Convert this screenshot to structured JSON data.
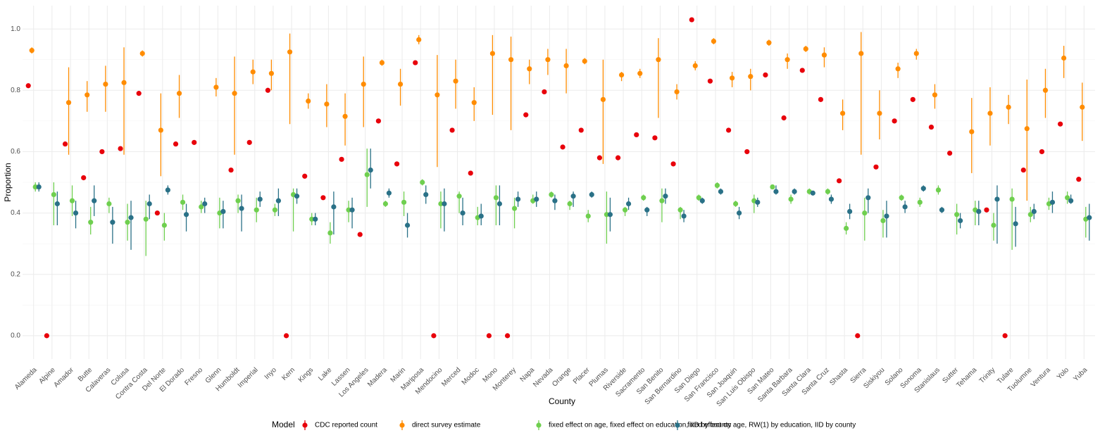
{
  "chart_data": {
    "type": "dot_errorbar",
    "x_label": "County",
    "y_label": "Proportion",
    "legend_title": "Model",
    "legend_position": "bottom",
    "grid": true,
    "categories": [
      "Alameda",
      "Alpine",
      "Amador",
      "Butte",
      "Calaveras",
      "Colusa",
      "Contra Costa",
      "Del Norte",
      "El Dorado",
      "Fresno",
      "Glenn",
      "Humboldt",
      "Imperial",
      "Inyo",
      "Kern",
      "Kings",
      "Lake",
      "Lassen",
      "Los Angeles",
      "Madera",
      "Marin",
      "Mariposa",
      "Mendocino",
      "Merced",
      "Modoc",
      "Mono",
      "Monterey",
      "Napa",
      "Nevada",
      "Orange",
      "Placer",
      "Plumas",
      "Riverside",
      "Sacramento",
      "San Benito",
      "San Bernardino",
      "San Diego",
      "San Francisco",
      "San Joaquin",
      "San Luis Obispo",
      "San Mateo",
      "Santa Barbara",
      "Santa Clara",
      "Santa Cruz",
      "Shasta",
      "Sierra",
      "Siskiyou",
      "Solano",
      "Sonoma",
      "Stanislaus",
      "Sutter",
      "Tehama",
      "Trinity",
      "Tulare",
      "Tuolumne",
      "Ventura",
      "Yolo",
      "Yuba"
    ],
    "ylim": [
      -0.076,
      1.076
    ],
    "yticks": [
      {
        "value": 0,
        "label": "0.0"
      },
      0.2,
      0.4,
      0.6,
      0.8,
      {
        "value": 1,
        "label": "1.0"
      }
    ],
    "series": [
      {
        "name": "CDC reported count",
        "color": "#e8000b",
        "values": [
          0.815,
          0,
          0.625,
          0.515,
          0.6,
          0.61,
          0.79,
          0.4,
          0.625,
          0.63,
          null,
          0.54,
          0.63,
          0.8,
          0,
          0.52,
          0.45,
          0.575,
          0.33,
          0.7,
          0.56,
          0.89,
          0,
          0.67,
          0.53,
          0,
          0,
          0.72,
          0.795,
          0.615,
          0.67,
          0.58,
          0.58,
          0.655,
          0.645,
          0.56,
          1.03,
          0.83,
          0.67,
          0.6,
          0.85,
          0.71,
          0.865,
          0.77,
          0.505,
          0,
          0.55,
          0.7,
          0.77,
          0.68,
          0.595,
          null,
          0.41,
          0,
          0.54,
          0.6,
          0.69,
          0.51
        ]
      },
      {
        "name": "direct survey estimate",
        "color": "#ff8c00",
        "values": [
          0.93,
          null,
          0.76,
          0.785,
          0.82,
          0.825,
          0.92,
          0.67,
          0.79,
          null,
          0.81,
          0.79,
          0.86,
          0.855,
          0.925,
          0.765,
          0.755,
          0.715,
          0.82,
          0.89,
          0.82,
          0.965,
          0.785,
          0.83,
          0.76,
          0.92,
          0.9,
          0.87,
          0.9,
          0.88,
          0.895,
          0.77,
          0.85,
          0.855,
          0.9,
          0.795,
          0.88,
          0.96,
          0.84,
          0.845,
          0.955,
          0.9,
          0.935,
          0.915,
          0.725,
          0.92,
          0.725,
          0.87,
          0.92,
          0.785,
          null,
          0.665,
          0.725,
          0.745,
          0.675,
          0.8,
          0.905,
          0.745
        ],
        "lower": [
          0.92,
          null,
          0.59,
          0.73,
          0.73,
          0.59,
          0.91,
          0.52,
          0.71,
          null,
          0.78,
          0.59,
          0.82,
          0.8,
          0.69,
          0.74,
          0.68,
          0.62,
          0.68,
          0.88,
          0.75,
          0.95,
          0.55,
          0.74,
          0.7,
          0.72,
          0.67,
          0.82,
          0.85,
          0.79,
          0.885,
          0.56,
          0.83,
          0.84,
          0.71,
          0.77,
          0.865,
          0.95,
          0.81,
          0.8,
          0.945,
          0.87,
          0.925,
          0.875,
          0.67,
          0.59,
          0.64,
          0.84,
          0.9,
          0.74,
          null,
          0.53,
          0.62,
          0.69,
          0.44,
          0.71,
          0.84,
          0.635
        ],
        "upper": [
          0.94,
          null,
          0.875,
          0.83,
          0.88,
          0.94,
          0.93,
          0.79,
          0.85,
          null,
          0.84,
          0.91,
          0.9,
          0.9,
          0.985,
          0.79,
          0.82,
          0.79,
          0.91,
          0.9,
          0.87,
          0.98,
          0.915,
          0.9,
          0.81,
          0.98,
          0.975,
          0.9,
          0.935,
          0.935,
          0.905,
          0.9,
          0.86,
          0.87,
          0.97,
          0.82,
          0.895,
          0.97,
          0.86,
          0.87,
          0.965,
          0.92,
          0.945,
          0.94,
          0.77,
          0.99,
          0.8,
          0.89,
          0.935,
          0.82,
          null,
          0.775,
          0.81,
          0.785,
          0.835,
          0.87,
          0.945,
          0.825
        ]
      },
      {
        "name": "fixed effect on age, fixed effect on education, IID by county",
        "color": "#6fcf4f",
        "values": [
          0.485,
          0.46,
          0.44,
          0.37,
          0.43,
          0.37,
          0.38,
          0.36,
          0.435,
          0.42,
          0.4,
          0.44,
          0.41,
          0.41,
          0.46,
          0.38,
          0.335,
          0.41,
          0.525,
          0.43,
          0.435,
          0.5,
          0.43,
          0.455,
          0.385,
          0.45,
          0.415,
          0.44,
          0.46,
          0.43,
          0.39,
          0.395,
          0.41,
          0.45,
          0.44,
          0.41,
          0.45,
          0.49,
          0.43,
          0.44,
          0.485,
          0.445,
          0.47,
          0.47,
          0.35,
          0.4,
          0.375,
          0.45,
          0.435,
          0.475,
          0.395,
          0.41,
          0.36,
          0.445,
          0.395,
          0.43,
          0.45,
          0.38
        ],
        "lower": [
          0.47,
          0.36,
          0.39,
          0.33,
          0.4,
          0.31,
          0.26,
          0.31,
          0.41,
          0.4,
          0.35,
          0.4,
          0.37,
          0.39,
          0.34,
          0.36,
          0.3,
          0.37,
          0.42,
          0.42,
          0.39,
          0.49,
          0.35,
          0.4,
          0.36,
          0.36,
          0.35,
          0.43,
          0.45,
          0.41,
          0.37,
          0.3,
          0.39,
          0.44,
          0.37,
          0.38,
          0.44,
          0.48,
          0.42,
          0.4,
          0.48,
          0.43,
          0.46,
          0.46,
          0.33,
          0.31,
          0.32,
          0.44,
          0.42,
          0.46,
          0.33,
          0.36,
          0.31,
          0.28,
          0.37,
          0.41,
          0.43,
          0.32
        ],
        "upper": [
          0.5,
          0.5,
          0.49,
          0.42,
          0.45,
          0.43,
          0.44,
          0.4,
          0.46,
          0.44,
          0.45,
          0.46,
          0.45,
          0.43,
          0.48,
          0.4,
          0.37,
          0.44,
          0.61,
          0.44,
          0.47,
          0.51,
          0.47,
          0.47,
          0.42,
          0.49,
          0.45,
          0.46,
          0.47,
          0.44,
          0.41,
          0.47,
          0.42,
          0.46,
          0.48,
          0.42,
          0.46,
          0.5,
          0.44,
          0.46,
          0.49,
          0.46,
          0.48,
          0.48,
          0.37,
          0.45,
          0.41,
          0.46,
          0.45,
          0.49,
          0.43,
          0.44,
          0.4,
          0.48,
          0.42,
          0.45,
          0.47,
          0.42
        ]
      },
      {
        "name": "fixed effect on age, RW(1) by education, IID by county",
        "color": "#2a7187",
        "values": [
          0.485,
          0.43,
          0.4,
          0.44,
          0.37,
          0.385,
          0.43,
          0.475,
          0.395,
          0.43,
          0.405,
          0.415,
          0.445,
          0.44,
          0.455,
          0.38,
          0.42,
          0.41,
          0.54,
          0.465,
          0.36,
          0.46,
          0.43,
          0.4,
          0.39,
          0.43,
          0.445,
          0.445,
          0.44,
          0.455,
          0.46,
          0.395,
          0.43,
          0.41,
          0.455,
          0.39,
          0.44,
          0.47,
          0.4,
          0.435,
          0.47,
          0.47,
          0.465,
          0.445,
          0.405,
          0.45,
          0.39,
          0.42,
          0.48,
          0.41,
          0.375,
          0.405,
          0.445,
          0.365,
          0.405,
          0.435,
          0.44,
          0.385
        ],
        "lower": [
          0.47,
          0.36,
          0.35,
          0.39,
          0.3,
          0.28,
          0.38,
          0.46,
          0.34,
          0.4,
          0.35,
          0.34,
          0.42,
          0.39,
          0.43,
          0.36,
          0.33,
          0.35,
          0.48,
          0.45,
          0.32,
          0.43,
          0.34,
          0.36,
          0.36,
          0.36,
          0.42,
          0.42,
          0.41,
          0.42,
          0.45,
          0.34,
          0.41,
          0.39,
          0.43,
          0.37,
          0.43,
          0.46,
          0.38,
          0.42,
          0.46,
          0.46,
          0.46,
          0.43,
          0.38,
          0.4,
          0.32,
          0.4,
          0.47,
          0.4,
          0.35,
          0.36,
          0.3,
          0.29,
          0.38,
          0.4,
          0.43,
          0.31
        ],
        "upper": [
          0.5,
          0.47,
          0.44,
          0.49,
          0.42,
          0.44,
          0.46,
          0.49,
          0.43,
          0.45,
          0.44,
          0.46,
          0.47,
          0.48,
          0.48,
          0.4,
          0.47,
          0.45,
          0.61,
          0.48,
          0.4,
          0.49,
          0.48,
          0.45,
          0.43,
          0.49,
          0.47,
          0.47,
          0.46,
          0.47,
          0.47,
          0.45,
          0.45,
          0.42,
          0.48,
          0.41,
          0.45,
          0.48,
          0.42,
          0.45,
          0.49,
          0.48,
          0.47,
          0.46,
          0.43,
          0.48,
          0.44,
          0.44,
          0.49,
          0.42,
          0.4,
          0.44,
          0.49,
          0.42,
          0.43,
          0.47,
          0.46,
          0.43
        ]
      }
    ]
  }
}
